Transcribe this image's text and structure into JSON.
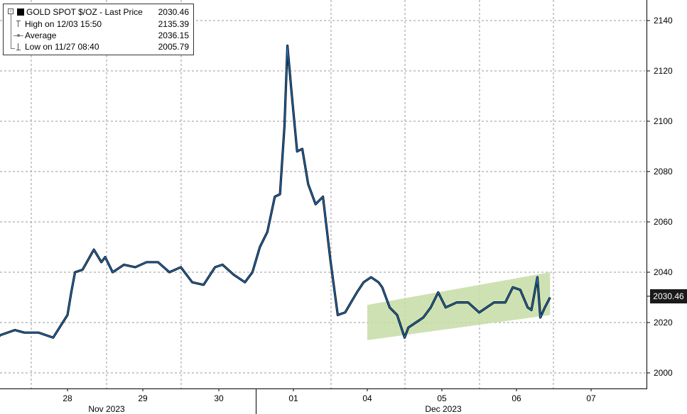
{
  "chart_data": {
    "type": "line",
    "title": "GOLD SPOT $/OZ",
    "ylim": [
      1996,
      2146
    ],
    "yticks": [
      2000,
      2020,
      2040,
      2060,
      2080,
      2100,
      2120,
      2140
    ],
    "grid": true,
    "x_day_labels": [
      "28",
      "29",
      "30",
      "01",
      "04",
      "05",
      "06",
      "07"
    ],
    "x_month_labels": [
      "Nov 2023",
      "Dec 2023"
    ],
    "series": [
      {
        "name": "GOLD SPOT $/OZ",
        "color": "#1f73c4",
        "x": [
          0,
          0.15,
          0.3,
          0.45,
          0.55,
          0.7,
          0.85,
          1.0,
          1.05,
          1.1,
          1.2,
          1.35,
          1.45,
          1.5,
          1.6,
          1.75,
          1.9,
          2.05,
          2.2,
          2.35,
          2.5,
          2.65,
          2.8,
          2.95,
          3.05,
          3.2,
          3.35,
          3.45,
          3.55,
          3.65,
          3.75,
          3.82,
          3.88,
          3.92,
          3.97,
          4.05,
          4.12,
          4.2,
          4.3,
          4.4,
          4.5,
          4.6,
          4.7,
          4.78,
          4.86,
          4.95,
          5.05,
          5.15,
          5.2,
          5.3,
          5.4,
          5.5,
          5.55,
          5.65,
          5.75,
          5.85,
          5.95,
          6.05,
          6.2,
          6.35,
          6.5,
          6.6,
          6.7,
          6.85,
          6.95,
          7.05,
          7.15,
          7.2,
          7.28,
          7.32,
          7.38,
          7.45
        ],
        "y": [
          2012,
          2010,
          2015,
          2017,
          2016,
          2016,
          2014,
          2023,
          2032,
          2040,
          2041,
          2049,
          2044,
          2046,
          2040,
          2043,
          2042,
          2044,
          2044,
          2040,
          2042,
          2036,
          2035,
          2042,
          2043,
          2039,
          2036,
          2040,
          2050,
          2056,
          2070,
          2071,
          2098,
          2130,
          2113,
          2088,
          2089,
          2075,
          2067,
          2070,
          2045,
          2023,
          2024,
          2028,
          2032,
          2036,
          2038,
          2036,
          2034,
          2026,
          2023,
          2014,
          2018,
          2020,
          2022,
          2026,
          2032,
          2026,
          2028,
          2028,
          2024,
          2026,
          2028,
          2028,
          2034,
          2033,
          2026,
          2025,
          2038,
          2022,
          2026,
          2030
        ]
      }
    ],
    "channel": {
      "x": [
        5.0,
        7.45
      ],
      "lower": [
        2013,
        2023
      ],
      "upper": [
        2027,
        2040
      ],
      "color": "#c6dca6"
    },
    "last_price": 2030.46
  },
  "legend": {
    "title": "GOLD SPOT $/OZ - Last Price",
    "title_value": "2030.46",
    "rows": [
      {
        "label": "High on 12/03 15:50",
        "value": "2135.39"
      },
      {
        "label": "Average",
        "value": "2036.15"
      },
      {
        "label": "Low on 11/27 08:40",
        "value": "2005.79"
      }
    ]
  },
  "badge": "2030.46"
}
